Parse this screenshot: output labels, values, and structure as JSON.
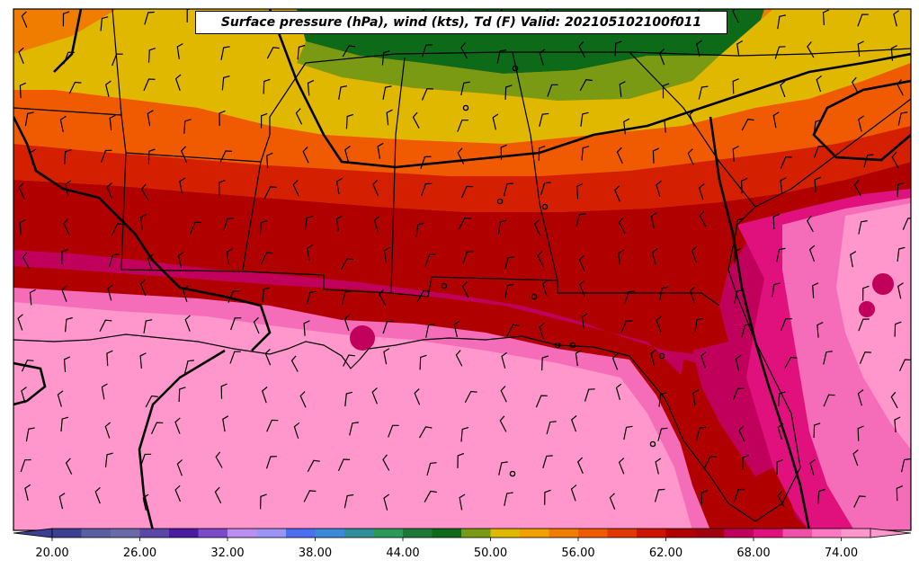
{
  "title": "Surface pressure (hPa), wind (kts), Td (F) Valid: 202105102100f011",
  "colorbar": {
    "min": 18,
    "max": 76,
    "step": 2,
    "tick_labels": [
      "20.00",
      "26.00",
      "32.00",
      "38.00",
      "44.00",
      "50.00",
      "56.00",
      "62.00",
      "68.00",
      "74.00"
    ],
    "tick_values": [
      20,
      26,
      32,
      38,
      44,
      50,
      56,
      62,
      68,
      74
    ],
    "colors": [
      "#3a3f91",
      "#5a5ea0",
      "#6a6aa8",
      "#5a47a8",
      "#4a1aa0",
      "#7a4ac8",
      "#b98ef0",
      "#9c94f4",
      "#4c6ef0",
      "#3a8ad8",
      "#2e8e9a",
      "#2a9a5a",
      "#1a7a34",
      "#0c6a18",
      "#7a9a14",
      "#e0b800",
      "#f0a000",
      "#f07c00",
      "#f05a00",
      "#e03800",
      "#cc1400",
      "#b00000",
      "#a00010",
      "#c0005a",
      "#e0107c",
      "#f050a8",
      "#fc78c0",
      "#ff96cc"
    ],
    "extend": "both"
  },
  "map": {
    "field_levels": [
      {
        "name": "td-64",
        "color": "#d42000"
      },
      {
        "name": "td-66",
        "color": "#b00000"
      },
      {
        "name": "td-68",
        "color": "#c0005a"
      },
      {
        "name": "td-70",
        "color": "#e0107c"
      },
      {
        "name": "td-72",
        "color": "#f56cb8"
      },
      {
        "name": "td-74",
        "color": "#ff96cc"
      }
    ]
  }
}
